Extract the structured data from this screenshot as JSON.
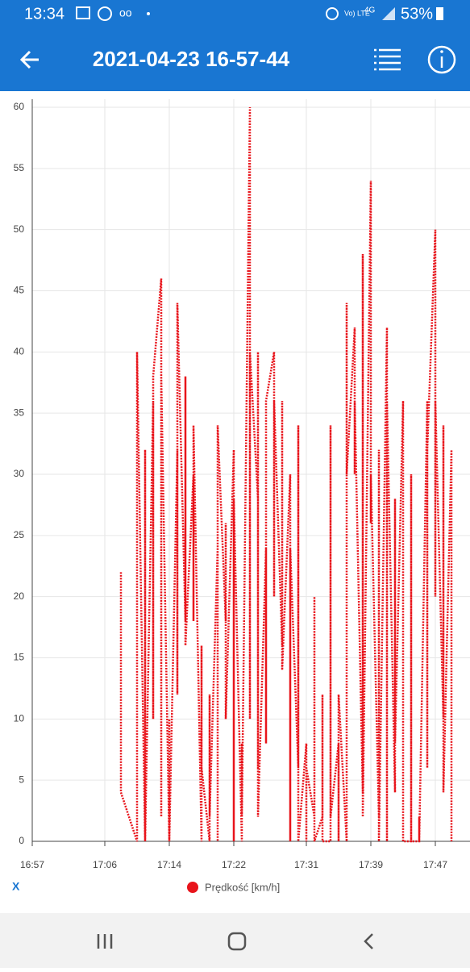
{
  "status_bar": {
    "time": "13:34",
    "network": "4G",
    "volte": "Vo) LTE",
    "battery": "53%"
  },
  "app_bar": {
    "title": "2021-04-23 16-57-44"
  },
  "chart_data": {
    "type": "line",
    "x_axis_label": "X",
    "x": [
      "17:08",
      "17:08",
      "17:10",
      "17:10",
      "17:11",
      "17:11",
      "17:11",
      "17:12",
      "17:12",
      "17:12",
      "17:13",
      "17:13",
      "17:13",
      "17:14",
      "17:14",
      "17:14",
      "17:15",
      "17:15",
      "17:15",
      "17:16",
      "17:16",
      "17:16",
      "17:17",
      "17:17",
      "17:17",
      "17:18",
      "17:18",
      "17:18",
      "17:19",
      "17:19",
      "17:19",
      "17:20",
      "17:20",
      "17:20",
      "17:21",
      "17:21",
      "17:21",
      "17:22",
      "17:22",
      "17:22",
      "17:23",
      "17:23",
      "17:23",
      "17:24",
      "17:24",
      "17:24",
      "17:25",
      "17:25",
      "17:25",
      "17:25",
      "17:26",
      "17:26",
      "17:26",
      "17:27",
      "17:27",
      "17:27",
      "17:28",
      "17:28",
      "17:28",
      "17:29",
      "17:29",
      "17:29",
      "17:30",
      "17:30",
      "17:30",
      "17:31",
      "17:31",
      "17:31",
      "17:32",
      "17:32",
      "17:32",
      "17:33",
      "17:33",
      "17:33",
      "17:34",
      "17:34",
      "17:34",
      "17:35",
      "17:35",
      "17:35",
      "17:36",
      "17:36",
      "17:36",
      "17:37",
      "17:37",
      "17:37",
      "17:38",
      "17:38",
      "17:38",
      "17:39",
      "17:39",
      "17:39",
      "17:40",
      "17:40",
      "17:40",
      "17:41",
      "17:41",
      "17:41",
      "17:42",
      "17:42",
      "17:42",
      "17:43",
      "17:43",
      "17:43",
      "17:44",
      "17:44",
      "17:44",
      "17:45",
      "17:45",
      "17:45",
      "17:46",
      "17:46",
      "17:46",
      "17:47",
      "17:47",
      "17:47",
      "17:48",
      "17:48",
      "17:48",
      "17:49",
      "17:49"
    ],
    "series": [
      {
        "name": "Prędkość [km/h]",
        "color": "#e8141b",
        "values": [
          22,
          4,
          0,
          40,
          0,
          32,
          0,
          36,
          10,
          38,
          46,
          2,
          38,
          0,
          10,
          0,
          32,
          12,
          44,
          18,
          38,
          16,
          30,
          18,
          34,
          0,
          16,
          6,
          0,
          12,
          2,
          24,
          0,
          34,
          18,
          26,
          10,
          32,
          0,
          28,
          0,
          8,
          2,
          60,
          10,
          40,
          28,
          6,
          40,
          2,
          24,
          8,
          36,
          40,
          20,
          36,
          16,
          36,
          14,
          30,
          0,
          24,
          6,
          34,
          0,
          8,
          0,
          6,
          2,
          20,
          0,
          2,
          12,
          0,
          0,
          34,
          2,
          8,
          0,
          12,
          0,
          44,
          30,
          42,
          30,
          36,
          4,
          48,
          2,
          54,
          26,
          30,
          2,
          32,
          0,
          42,
          0,
          36,
          4,
          28,
          8,
          36,
          14,
          0,
          0,
          30,
          0,
          0,
          2,
          0,
          36,
          6,
          32,
          50,
          20,
          36,
          10,
          34,
          4,
          32,
          0
        ]
      }
    ],
    "xlim": [
      "16:57",
      "17:50"
    ],
    "xticks": [
      "16:57",
      "17:06",
      "17:14",
      "17:22",
      "17:31",
      "17:39",
      "17:47"
    ],
    "ylim": [
      0,
      60
    ],
    "yticks": [
      0,
      5,
      10,
      15,
      20,
      25,
      30,
      35,
      40,
      45,
      50,
      55,
      60
    ],
    "grid": true
  }
}
